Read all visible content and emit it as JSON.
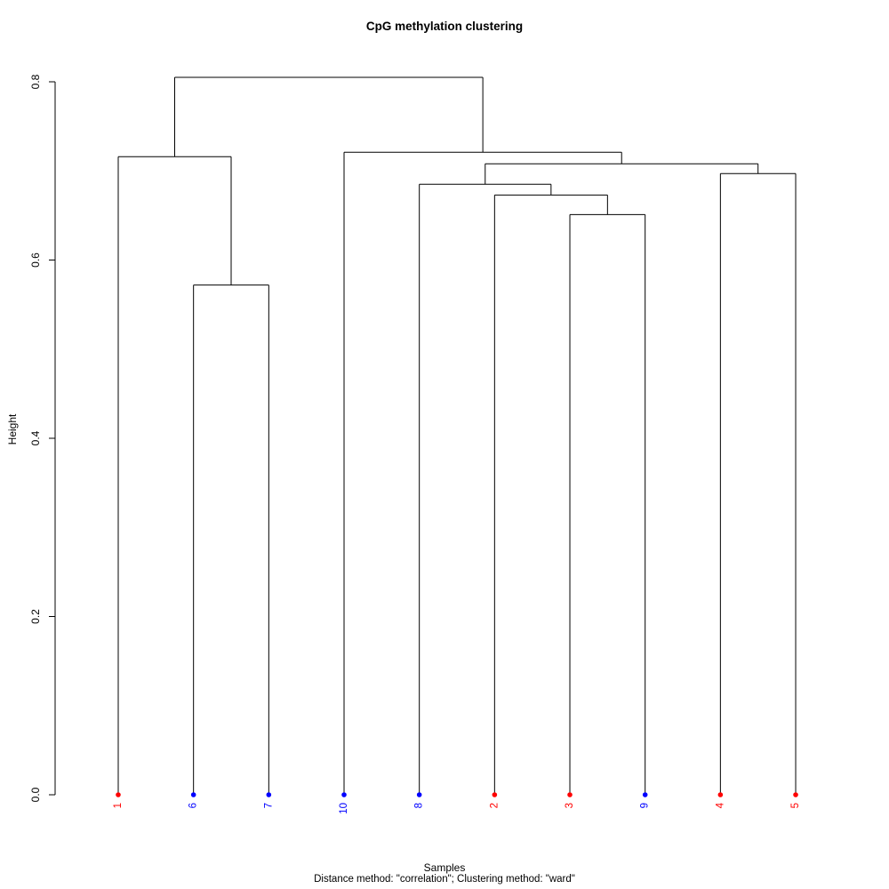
{
  "chart_data": {
    "type": "dendrogram",
    "title": "CpG methylation clustering",
    "xlabel": "Samples",
    "ylabel": "Height",
    "subtitle": "Distance method: \"correlation\"; Clustering method: \"ward\"",
    "yticks": [
      "0.0",
      "0.2",
      "0.4",
      "0.6",
      "0.8"
    ],
    "ylim": [
      0,
      0.81
    ],
    "grid": false,
    "line_color": "#000000",
    "leaves": [
      {
        "label": "1",
        "color": "#ff0000"
      },
      {
        "label": "6",
        "color": "#0000ff"
      },
      {
        "label": "7",
        "color": "#0000ff"
      },
      {
        "label": "10",
        "color": "#0000ff"
      },
      {
        "label": "8",
        "color": "#0000ff"
      },
      {
        "label": "2",
        "color": "#ff0000"
      },
      {
        "label": "3",
        "color": "#ff0000"
      },
      {
        "label": "9",
        "color": "#0000ff"
      },
      {
        "label": "4",
        "color": "#ff0000"
      },
      {
        "label": "5",
        "color": "#ff0000"
      }
    ],
    "tree": {
      "h": 0.805,
      "children": [
        {
          "h": 0.716,
          "children": [
            {
              "leaf": 0
            },
            {
              "h": 0.572,
              "children": [
                {
                  "leaf": 1
                },
                {
                  "leaf": 2
                }
              ]
            }
          ]
        },
        {
          "h": 0.721,
          "children": [
            {
              "leaf": 3
            },
            {
              "h": 0.708,
              "children": [
                {
                  "h": 0.685,
                  "children": [
                    {
                      "leaf": 4
                    },
                    {
                      "h": 0.673,
                      "children": [
                        {
                          "leaf": 5
                        },
                        {
                          "h": 0.651,
                          "children": [
                            {
                              "leaf": 6
                            },
                            {
                              "leaf": 7
                            }
                          ]
                        }
                      ]
                    }
                  ]
                },
                {
                  "h": 0.697,
                  "children": [
                    {
                      "leaf": 8
                    },
                    {
                      "leaf": 9
                    }
                  ]
                }
              ]
            }
          ]
        }
      ]
    }
  }
}
